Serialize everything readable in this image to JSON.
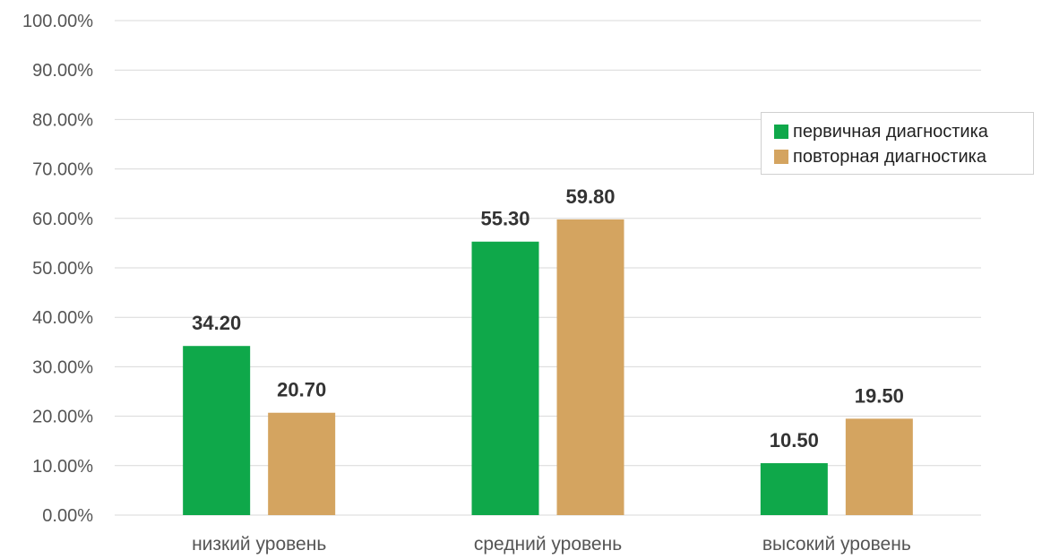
{
  "chart_data": {
    "type": "bar",
    "categories": [
      "низкий уровень",
      "средний уровень",
      "высокий уровень"
    ],
    "series": [
      {
        "name": "первичная диагностика",
        "color": "#0fa84a",
        "values": [
          34.2,
          55.3,
          10.5
        ],
        "labels": [
          "34.20",
          "55.30",
          "10.50"
        ]
      },
      {
        "name": "повторная диагностика",
        "color": "#d4a460",
        "values": [
          20.7,
          59.8,
          19.5
        ],
        "labels": [
          "20.70",
          "59.80",
          "19.50"
        ]
      }
    ],
    "yticks": [
      "0.00%",
      "10.00%",
      "20.00%",
      "30.00%",
      "40.00%",
      "50.00%",
      "60.00%",
      "70.00%",
      "80.00%",
      "90.00%",
      "100.00%"
    ],
    "ylim": [
      0,
      100
    ],
    "grid": true,
    "legend_position": "top-right"
  }
}
